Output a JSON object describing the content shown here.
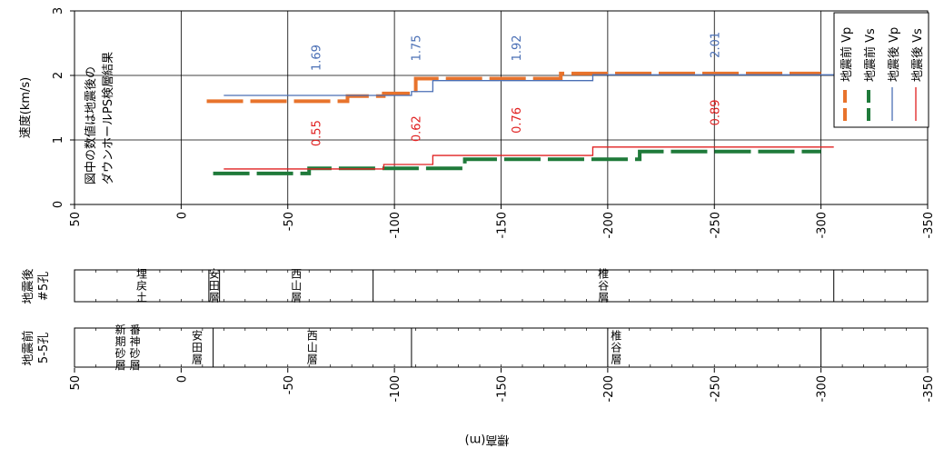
{
  "chart_data": {
    "type": "line",
    "title_lines": [
      "図中の数値は地震後の",
      "ダウンホールPS検層結果"
    ],
    "ylabel": "速度(km/s)",
    "xlabel": "標高(m)",
    "ylim": [
      0,
      3
    ],
    "yticks": [
      "0",
      "1",
      "2",
      "3"
    ],
    "xlim": [
      50,
      -350
    ],
    "xticks": [
      "50",
      "0",
      "-50",
      "-100",
      "-150",
      "-200",
      "-250",
      "-300",
      "-350"
    ],
    "grid": true,
    "legend_position": "top-right",
    "legend": [
      "地震前 Vp",
      "地震前 Vs",
      "地震後 Vp",
      "地震後 Vs"
    ],
    "colors": {
      "before_vp": "#e8732c",
      "before_vs": "#1f7a3a",
      "after_vp": "#4a6fb5",
      "after_vs": "#e02020"
    },
    "series": [
      {
        "name": "地震前 Vp",
        "style": "dashed",
        "x": [
          -12,
          -78,
          -78,
          -95,
          -95,
          -110,
          -110,
          -178,
          -178,
          -300
        ],
        "y": [
          1.6,
          1.6,
          1.68,
          1.68,
          1.72,
          1.72,
          1.95,
          1.95,
          2.03,
          2.03
        ]
      },
      {
        "name": "地震前 Vs",
        "style": "dashed",
        "x": [
          -15,
          -60,
          -60,
          -133,
          -133,
          -215,
          -215,
          -300
        ],
        "y": [
          0.48,
          0.48,
          0.56,
          0.56,
          0.7,
          0.7,
          0.82,
          0.82
        ]
      },
      {
        "name": "地震後 Vp",
        "style": "solid",
        "x": [
          -20,
          -108,
          -108,
          -118,
          -118,
          -193,
          -193,
          -306
        ],
        "y": [
          1.69,
          1.69,
          1.75,
          1.75,
          1.92,
          1.92,
          2.01,
          2.01
        ]
      },
      {
        "name": "地震後 Vs",
        "style": "solid",
        "x": [
          -20,
          -95,
          -95,
          -118,
          -118,
          -193,
          -193,
          -306
        ],
        "y": [
          0.55,
          0.55,
          0.62,
          0.62,
          0.76,
          0.76,
          0.89,
          0.89
        ]
      }
    ],
    "annotations": [
      {
        "text": "1.69",
        "x": -63,
        "y": 2.07,
        "series": "after_vp"
      },
      {
        "text": "1.75",
        "x": -110,
        "y": 2.22,
        "series": "after_vp"
      },
      {
        "text": "1.92",
        "x": -157,
        "y": 2.22,
        "series": "after_vp"
      },
      {
        "text": "2.01",
        "x": -250,
        "y": 2.27,
        "series": "after_vp"
      },
      {
        "text": "0.55",
        "x": -63,
        "y": 0.9,
        "series": "after_vs"
      },
      {
        "text": "0.62",
        "x": -110,
        "y": 0.97,
        "series": "after_vs"
      },
      {
        "text": "0.76",
        "x": -157,
        "y": 1.1,
        "series": "after_vs"
      },
      {
        "text": "0.89",
        "x": -250,
        "y": 1.22,
        "series": "after_vs"
      }
    ],
    "columns": [
      {
        "label_lines": [
          "地震後",
          "#5孔"
        ],
        "boundaries": [
          -13,
          -18,
          -90,
          -306
        ],
        "layers": [
          {
            "lines": [
              "埋戻土"
            ],
            "from": 50,
            "to": -13
          },
          {
            "lines": [
              "安田層"
            ],
            "from": -13,
            "to": -18
          },
          {
            "lines": [
              "西山層"
            ],
            "from": -18,
            "to": -90
          },
          {
            "lines": [
              "椎谷層"
            ],
            "from": -90,
            "to": -306
          }
        ]
      },
      {
        "label_lines": [
          "地震前",
          "5-5孔"
        ],
        "boundaries": [
          -15,
          -108,
          -200,
          -300
        ],
        "layers": [
          {
            "lines": [
              "新期砂層",
              "番神砂層"
            ],
            "from": 50,
            "to": 0
          },
          {
            "lines": [
              "安田層"
            ],
            "from": 0,
            "to": -15
          },
          {
            "lines": [
              "西山層"
            ],
            "from": -15,
            "to": -108
          },
          {
            "lines": [
              "椎谷層"
            ],
            "from": -108,
            "to": -300
          }
        ]
      }
    ]
  }
}
